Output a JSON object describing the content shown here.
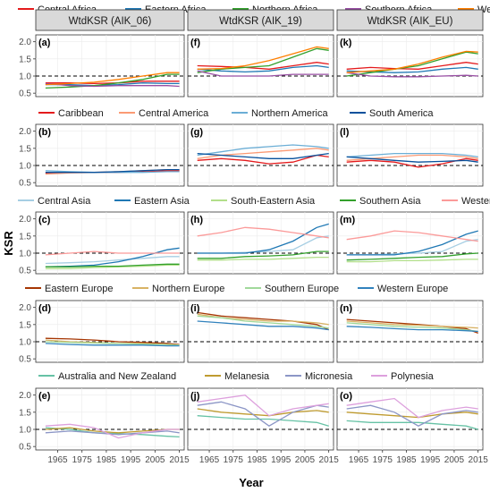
{
  "figure": {
    "ylabel": "KSR",
    "xlabel": "Year",
    "column_headers": [
      "WtdKSR (AIK_06)",
      "WtdKSR (AIK_19)",
      "WtdKSR (AIK_EU)"
    ],
    "x_ticks": [
      "1965",
      "1975",
      "1985",
      "1995",
      "2005",
      "2015"
    ],
    "y_ticks": [
      "0.5",
      "1.0",
      "1.5",
      "2.0"
    ]
  },
  "chart_data": [
    {
      "type": "line",
      "row": 0,
      "legend": [
        {
          "name": "Central Africa",
          "color": "#e41a1c"
        },
        {
          "name": "Eastern Africa",
          "color": "#1f78b4"
        },
        {
          "name": "Northern Africa",
          "color": "#33a02c"
        },
        {
          "name": "Southern Africa",
          "color": "#984ea3"
        },
        {
          "name": "Western Africa",
          "color": "#ff7f00"
        }
      ],
      "panels": [
        {
          "label": "(a)",
          "x": [
            1960,
            1970,
            1980,
            1990,
            2000,
            2010,
            2015
          ],
          "series": [
            [
              0.8,
              0.8,
              0.78,
              0.8,
              0.85,
              0.85,
              0.85
            ],
            [
              0.75,
              0.75,
              0.72,
              0.75,
              0.8,
              0.78,
              0.78
            ],
            [
              0.65,
              0.68,
              0.72,
              0.8,
              0.9,
              1.05,
              1.05
            ],
            [
              0.78,
              0.72,
              0.7,
              0.72,
              0.72,
              0.72,
              0.7
            ],
            [
              0.75,
              0.78,
              0.82,
              0.9,
              1.0,
              1.1,
              1.1
            ]
          ]
        },
        {
          "label": "(f)",
          "x": [
            1960,
            1970,
            1980,
            1990,
            2000,
            2010,
            2015
          ],
          "series": [
            [
              1.3,
              1.28,
              1.25,
              1.2,
              1.3,
              1.4,
              1.35
            ],
            [
              1.2,
              1.15,
              1.12,
              1.15,
              1.25,
              1.3,
              1.25
            ],
            [
              1.1,
              1.2,
              1.25,
              1.3,
              1.55,
              1.8,
              1.75
            ],
            [
              1.15,
              1.0,
              1.0,
              1.0,
              1.05,
              1.05,
              1.05
            ],
            [
              1.2,
              1.22,
              1.3,
              1.45,
              1.65,
              1.85,
              1.8
            ]
          ]
        },
        {
          "label": "(k)",
          "x": [
            1960,
            1970,
            1980,
            1990,
            2000,
            2010,
            2015
          ],
          "series": [
            [
              1.2,
              1.25,
              1.22,
              1.2,
              1.3,
              1.4,
              1.35
            ],
            [
              1.15,
              1.12,
              1.1,
              1.12,
              1.2,
              1.25,
              1.2
            ],
            [
              1.0,
              1.1,
              1.2,
              1.3,
              1.5,
              1.7,
              1.65
            ],
            [
              1.1,
              1.0,
              0.98,
              0.98,
              1.0,
              1.02,
              1.0
            ],
            [
              1.1,
              1.15,
              1.2,
              1.35,
              1.55,
              1.72,
              1.7
            ]
          ]
        }
      ]
    },
    {
      "type": "line",
      "row": 1,
      "legend": [
        {
          "name": "Caribbean",
          "color": "#e41a1c"
        },
        {
          "name": "Central America",
          "color": "#fb9a74"
        },
        {
          "name": "Northern America",
          "color": "#6baed6"
        },
        {
          "name": "South America",
          "color": "#08519c"
        }
      ],
      "panels": [
        {
          "label": "(b)",
          "x": [
            1960,
            1970,
            1980,
            1990,
            2000,
            2010,
            2015
          ],
          "series": [
            [
              0.78,
              0.8,
              0.8,
              0.8,
              0.82,
              0.85,
              0.85
            ],
            [
              0.75,
              0.78,
              0.8,
              0.82,
              0.85,
              0.88,
              0.88
            ],
            [
              0.85,
              0.82,
              0.8,
              0.8,
              0.8,
              0.82,
              0.82
            ],
            [
              0.8,
              0.8,
              0.8,
              0.82,
              0.85,
              0.88,
              0.88
            ]
          ]
        },
        {
          "label": "(g)",
          "x": [
            1960,
            1970,
            1980,
            1990,
            2000,
            2010,
            2015
          ],
          "series": [
            [
              1.15,
              1.2,
              1.15,
              1.05,
              1.1,
              1.3,
              1.25
            ],
            [
              1.2,
              1.3,
              1.35,
              1.4,
              1.45,
              1.5,
              1.45
            ],
            [
              1.3,
              1.4,
              1.5,
              1.55,
              1.6,
              1.55,
              1.5
            ],
            [
              1.35,
              1.3,
              1.25,
              1.2,
              1.2,
              1.3,
              1.35
            ]
          ]
        },
        {
          "label": "(l)",
          "x": [
            1960,
            1970,
            1980,
            1990,
            2000,
            2010,
            2015
          ],
          "series": [
            [
              1.1,
              1.15,
              1.1,
              0.95,
              1.05,
              1.2,
              1.15
            ],
            [
              1.15,
              1.2,
              1.25,
              1.3,
              1.3,
              1.25,
              1.2
            ],
            [
              1.25,
              1.3,
              1.35,
              1.35,
              1.35,
              1.3,
              1.25
            ],
            [
              1.25,
              1.2,
              1.15,
              1.1,
              1.12,
              1.15,
              1.1
            ]
          ]
        }
      ]
    },
    {
      "type": "line",
      "row": 2,
      "legend": [
        {
          "name": "Central Asia",
          "color": "#a6cee3"
        },
        {
          "name": "Eastern Asia",
          "color": "#1f78b4"
        },
        {
          "name": "South-Eastern Asia",
          "color": "#b2df8a"
        },
        {
          "name": "Southern Asia",
          "color": "#33a02c"
        },
        {
          "name": "Western Asia",
          "color": "#fb9a99"
        }
      ],
      "panels": [
        {
          "label": "(c)",
          "x": [
            1960,
            1970,
            1980,
            1990,
            2000,
            2010,
            2015
          ],
          "series": [
            [
              0.7,
              0.72,
              0.75,
              0.8,
              0.85,
              0.9,
              0.9
            ],
            [
              0.6,
              0.62,
              0.65,
              0.75,
              0.9,
              1.1,
              1.15
            ],
            [
              0.55,
              0.55,
              0.58,
              0.6,
              0.62,
              0.65,
              0.65
            ],
            [
              0.6,
              0.6,
              0.62,
              0.62,
              0.65,
              0.68,
              0.68
            ],
            [
              0.95,
              1.0,
              1.05,
              1.0,
              1.0,
              1.0,
              1.0
            ]
          ]
        },
        {
          "label": "(h)",
          "x": [
            1960,
            1970,
            1980,
            1990,
            2000,
            2010,
            2015
          ],
          "series": [
            [
              1.0,
              1.0,
              1.02,
              1.05,
              1.1,
              1.45,
              1.5
            ],
            [
              1.0,
              1.0,
              1.0,
              1.1,
              1.35,
              1.75,
              1.85
            ],
            [
              0.8,
              0.8,
              0.82,
              0.82,
              0.85,
              0.88,
              0.88
            ],
            [
              0.85,
              0.85,
              0.9,
              0.92,
              0.95,
              1.05,
              1.05
            ],
            [
              1.5,
              1.6,
              1.75,
              1.7,
              1.6,
              1.5,
              1.45
            ]
          ]
        },
        {
          "label": "(m)",
          "x": [
            1960,
            1970,
            1980,
            1990,
            2000,
            2010,
            2015
          ],
          "series": [
            [
              0.95,
              0.95,
              0.98,
              1.0,
              1.05,
              1.35,
              1.4
            ],
            [
              0.95,
              0.95,
              0.95,
              1.05,
              1.25,
              1.55,
              1.65
            ],
            [
              0.75,
              0.75,
              0.78,
              0.78,
              0.8,
              0.82,
              0.82
            ],
            [
              0.8,
              0.82,
              0.85,
              0.88,
              0.9,
              0.98,
              1.0
            ],
            [
              1.4,
              1.5,
              1.65,
              1.6,
              1.5,
              1.4,
              1.35
            ]
          ]
        }
      ]
    },
    {
      "type": "line",
      "row": 3,
      "legend": [
        {
          "name": "Eastern Europe",
          "color": "#a63603"
        },
        {
          "name": "Northern Europe",
          "color": "#d8b365"
        },
        {
          "name": "Southern Europe",
          "color": "#a1d99b"
        },
        {
          "name": "Western Europe",
          "color": "#3182bd"
        }
      ],
      "panels": [
        {
          "label": "(d)",
          "x": [
            1960,
            1970,
            1980,
            1990,
            2000,
            2010,
            2015
          ],
          "series": [
            [
              1.1,
              1.08,
              1.05,
              1.0,
              0.98,
              0.95,
              0.92
            ],
            [
              1.05,
              1.0,
              0.98,
              0.95,
              0.95,
              0.92,
              0.9
            ],
            [
              1.0,
              0.98,
              0.96,
              0.95,
              0.93,
              0.92,
              0.9
            ],
            [
              0.95,
              0.92,
              0.9,
              0.9,
              0.9,
              0.88,
              0.88
            ]
          ]
        },
        {
          "label": "(i)",
          "x": [
            1960,
            1970,
            1980,
            1990,
            2000,
            2010,
            2015
          ],
          "series": [
            [
              1.85,
              1.75,
              1.7,
              1.65,
              1.6,
              1.5,
              1.35
            ],
            [
              1.8,
              1.7,
              1.65,
              1.6,
              1.6,
              1.55,
              1.5
            ],
            [
              1.75,
              1.7,
              1.6,
              1.55,
              1.5,
              1.45,
              1.4
            ],
            [
              1.6,
              1.55,
              1.5,
              1.45,
              1.45,
              1.4,
              1.35
            ]
          ]
        },
        {
          "label": "(n)",
          "x": [
            1960,
            1970,
            1980,
            1990,
            2000,
            2010,
            2015
          ],
          "series": [
            [
              1.65,
              1.6,
              1.55,
              1.5,
              1.45,
              1.38,
              1.25
            ],
            [
              1.6,
              1.55,
              1.5,
              1.48,
              1.45,
              1.42,
              1.4
            ],
            [
              1.55,
              1.5,
              1.45,
              1.42,
              1.4,
              1.35,
              1.3
            ],
            [
              1.45,
              1.42,
              1.38,
              1.35,
              1.35,
              1.32,
              1.3
            ]
          ]
        }
      ]
    },
    {
      "type": "line",
      "row": 4,
      "legend": [
        {
          "name": "Australia and New Zealand",
          "color": "#66c2a5"
        },
        {
          "name": "Melanesia",
          "color": "#bf9b30"
        },
        {
          "name": "Micronesia",
          "color": "#8c96c6"
        },
        {
          "name": "Polynesia",
          "color": "#dda0dd"
        }
      ],
      "panels": [
        {
          "label": "(e)",
          "x": [
            1960,
            1970,
            1980,
            1990,
            2000,
            2010,
            2015
          ],
          "series": [
            [
              1.05,
              1.0,
              0.9,
              0.88,
              0.85,
              0.8,
              0.78
            ],
            [
              1.0,
              1.05,
              0.95,
              0.9,
              0.95,
              1.0,
              1.0
            ],
            [
              0.9,
              0.95,
              0.9,
              0.85,
              0.9,
              0.95,
              0.9
            ],
            [
              1.1,
              1.15,
              1.05,
              0.75,
              0.9,
              1.0,
              1.0
            ]
          ]
        },
        {
          "label": "(j)",
          "x": [
            1960,
            1970,
            1980,
            1990,
            2000,
            2010,
            2015
          ],
          "series": [
            [
              1.4,
              1.35,
              1.3,
              1.3,
              1.25,
              1.2,
              1.1
            ],
            [
              1.6,
              1.5,
              1.45,
              1.4,
              1.5,
              1.55,
              1.5
            ],
            [
              1.7,
              1.8,
              1.6,
              1.1,
              1.5,
              1.7,
              1.65
            ],
            [
              1.8,
              1.9,
              2.0,
              1.4,
              1.6,
              1.7,
              1.75
            ]
          ]
        },
        {
          "label": "(o)",
          "x": [
            1960,
            1970,
            1980,
            1990,
            2000,
            2010,
            2015
          ],
          "series": [
            [
              1.25,
              1.2,
              1.2,
              1.2,
              1.15,
              1.1,
              1.0
            ],
            [
              1.5,
              1.45,
              1.4,
              1.35,
              1.45,
              1.5,
              1.45
            ],
            [
              1.6,
              1.7,
              1.5,
              1.1,
              1.45,
              1.55,
              1.5
            ],
            [
              1.7,
              1.8,
              1.9,
              1.35,
              1.55,
              1.65,
              1.6
            ]
          ]
        }
      ]
    }
  ]
}
